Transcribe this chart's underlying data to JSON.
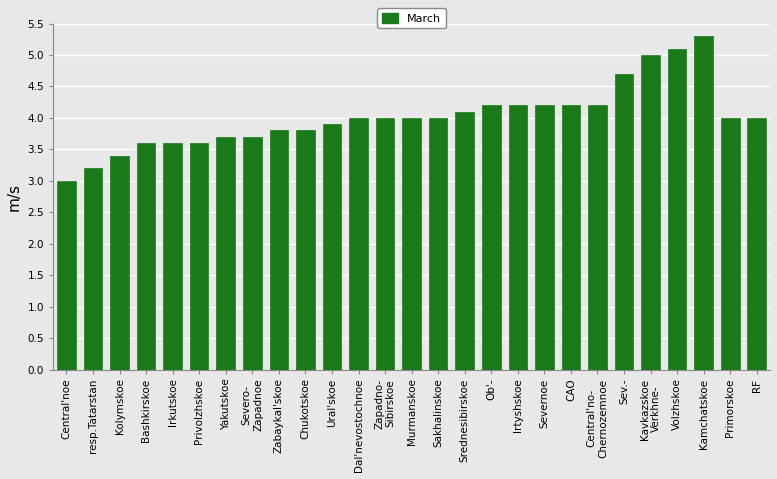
{
  "categories": [
    "Central'noe",
    "resp.Tatarstan",
    "Kolymskoe",
    "Bashkirskoe",
    "Irkutskoe",
    "Privolzhskoe",
    "Yakutskoe",
    "Severo-\nZapadnoe",
    "Zabaykal'skoe",
    "Chukotskoe",
    "Ural'skoe",
    "Dal'nevostochnoe",
    "Zapadno-\nSibirskoe",
    "Murmanskoe",
    "Sakhalinskoe",
    "Srednesibirskoe",
    "Ob'-",
    "Irtyshskoe",
    "Severnoe",
    "CAO",
    "Central'no-\nChernozemnoe",
    "Sev.-",
    "Kavkazskoe\nVerkhne-",
    "Volzhskoe",
    "Kamchatskoe",
    "Primorskoe",
    "RF"
  ],
  "values": [
    3.0,
    3.2,
    3.4,
    3.6,
    3.6,
    3.6,
    3.7,
    3.7,
    3.8,
    3.8,
    3.9,
    4.0,
    4.0,
    4.0,
    4.0,
    4.1,
    4.2,
    4.2,
    4.2,
    4.2,
    4.2,
    4.7,
    5.0,
    5.1,
    5.3,
    4.0,
    4.0
  ],
  "bar_color": "#1a7a1a",
  "bar_edge_color": "#1a7a1a",
  "ylabel": "m/s",
  "ylim": [
    0,
    5.5
  ],
  "yticks": [
    0,
    0.5,
    1.0,
    1.5,
    2.0,
    2.5,
    3.0,
    3.5,
    4.0,
    4.5,
    5.0,
    5.5
  ],
  "legend_label": "March",
  "legend_color": "#1a7a1a",
  "bg_color": "#e8e8e8",
  "grid_color": "#ffffff",
  "tick_fontsize": 7.5,
  "ylabel_fontsize": 11
}
